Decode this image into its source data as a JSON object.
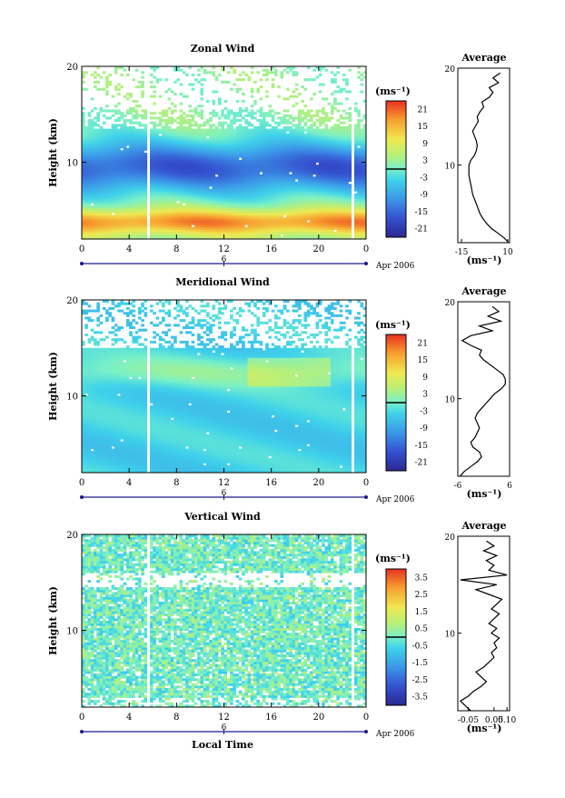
{
  "chart_data": [
    {
      "type": "heatmap",
      "title": "Zonal Wind",
      "xlabel": "",
      "ylabel": "Height (km)",
      "x_ticks": [
        "0",
        "4",
        "8",
        "12",
        "16",
        "20",
        "0"
      ],
      "date_ticks": [
        "6"
      ],
      "date_label": "Apr 2006",
      "y_ticks": [
        "20",
        "10"
      ],
      "xlim": [
        0,
        24
      ],
      "ylim": [
        2,
        20
      ],
      "unit": "(ms⁻¹)",
      "colorbar_ticks": [
        "21",
        "15",
        "9",
        "3",
        "-3",
        "-9",
        "-15",
        "-21"
      ],
      "colorbar_range": [
        -24,
        24
      ],
      "profile": {
        "title": "Average",
        "xlabel": "(ms⁻¹)",
        "x_ticks": [
          "-15",
          "10"
        ],
        "y_ticks": [
          "20",
          "10"
        ],
        "xlim": [
          -17,
          11
        ],
        "heights": [
          2.0,
          2.5,
          3.0,
          3.5,
          4.0,
          4.5,
          5.0,
          5.5,
          6.0,
          6.5,
          7.0,
          7.5,
          8.0,
          8.5,
          9.0,
          9.5,
          10.0,
          10.5,
          11.0,
          11.5,
          12.0,
          12.5,
          13.0,
          13.5,
          14.0,
          14.5,
          15.0,
          15.5,
          16.0,
          16.5,
          17.0,
          17.5,
          18.0,
          18.5,
          19.0,
          19.5
        ],
        "values": [
          10.5,
          8.0,
          4.5,
          1.0,
          -1.5,
          -3.5,
          -5.0,
          -6.0,
          -7.0,
          -8.0,
          -9.0,
          -9.5,
          -10.0,
          -10.5,
          -11.0,
          -11.0,
          -11.0,
          -10.0,
          -8.0,
          -7.0,
          -6.5,
          -7.0,
          -8.0,
          -9.0,
          -7.5,
          -6.0,
          -6.5,
          -5.0,
          -3.0,
          -4.0,
          0.0,
          2.0,
          0.0,
          5.0,
          2.0,
          6.0
        ]
      }
    },
    {
      "type": "heatmap",
      "title": "Meridional Wind",
      "xlabel": "",
      "ylabel": "Height (km)",
      "x_ticks": [
        "0",
        "4",
        "8",
        "12",
        "16",
        "20",
        "0"
      ],
      "date_ticks": [
        "6"
      ],
      "date_label": "Apr 2006",
      "y_ticks": [
        "20",
        "10"
      ],
      "xlim": [
        0,
        24
      ],
      "ylim": [
        2,
        20
      ],
      "unit": "(ms⁻¹)",
      "colorbar_ticks": [
        "21",
        "15",
        "9",
        "3",
        "-3",
        "-9",
        "-15",
        "-21"
      ],
      "colorbar_range": [
        -24,
        24
      ],
      "profile": {
        "title": "Average",
        "xlabel": "(ms⁻¹)",
        "x_ticks": [
          "-6",
          "6"
        ],
        "y_ticks": [
          "20",
          "10"
        ],
        "xlim": [
          -6,
          6
        ],
        "heights": [
          2.0,
          2.5,
          3.0,
          3.5,
          4.0,
          4.5,
          5.0,
          5.5,
          6.0,
          6.5,
          7.0,
          7.5,
          8.0,
          8.5,
          9.0,
          9.5,
          10.0,
          10.5,
          11.0,
          11.5,
          12.0,
          12.5,
          13.0,
          13.5,
          14.0,
          14.5,
          15.0,
          15.5,
          16.0,
          16.5,
          17.0,
          17.5,
          18.0,
          18.5,
          19.0,
          19.5
        ],
        "values": [
          -5.5,
          -4.5,
          -3.0,
          -1.5,
          -0.5,
          -1.0,
          -2.5,
          -3.0,
          -2.0,
          -1.5,
          -1.0,
          -1.5,
          -2.0,
          -1.5,
          -0.5,
          0.5,
          1.5,
          2.5,
          4.0,
          5.0,
          5.0,
          4.5,
          3.0,
          1.5,
          0.0,
          -1.0,
          -0.5,
          -3.0,
          -5.0,
          -3.0,
          2.0,
          -1.0,
          4.0,
          1.0,
          3.5,
          2.0
        ]
      }
    },
    {
      "type": "heatmap",
      "title": "Vertical Wind",
      "xlabel": "Local Time",
      "ylabel": "Height (km)",
      "x_ticks": [
        "0",
        "4",
        "8",
        "12",
        "16",
        "20",
        "0"
      ],
      "date_ticks": [
        "6"
      ],
      "date_label": "Apr 2006",
      "y_ticks": [
        "20",
        "10"
      ],
      "xlim": [
        0,
        24
      ],
      "ylim": [
        2,
        20
      ],
      "unit": "(ms⁻¹)",
      "colorbar_ticks": [
        "3.5",
        "2.5",
        "1.5",
        "0.5",
        "-0.5",
        "-1.5",
        "-2.5",
        "-3.5"
      ],
      "colorbar_range": [
        -4,
        4
      ],
      "profile": {
        "title": "Average",
        "xlabel": "(ms⁻¹)",
        "x_ticks": [
          "-0.05",
          "0.05",
          "0.10"
        ],
        "y_ticks": [
          "20",
          "10"
        ],
        "xlim": [
          -0.09,
          0.11
        ],
        "heights": [
          2.0,
          2.5,
          3.0,
          3.5,
          4.0,
          4.5,
          5.0,
          5.5,
          6.0,
          6.5,
          7.0,
          7.5,
          8.0,
          8.5,
          9.0,
          9.5,
          10.0,
          10.5,
          11.0,
          11.5,
          12.0,
          12.5,
          13.0,
          13.5,
          14.0,
          14.5,
          15.0,
          15.5,
          16.0,
          16.5,
          17.0,
          17.5,
          18.0,
          18.5,
          19.0,
          19.5
        ],
        "values": [
          -0.04,
          -0.06,
          -0.08,
          -0.05,
          -0.03,
          0.0,
          0.02,
          0.0,
          -0.02,
          0.01,
          0.03,
          0.05,
          0.04,
          0.06,
          0.05,
          0.07,
          0.04,
          0.06,
          0.03,
          0.05,
          0.07,
          0.04,
          0.06,
          0.08,
          0.03,
          -0.02,
          0.06,
          -0.08,
          0.1,
          0.03,
          0.05,
          0.02,
          0.06,
          0.01,
          0.05,
          0.02
        ]
      }
    }
  ]
}
